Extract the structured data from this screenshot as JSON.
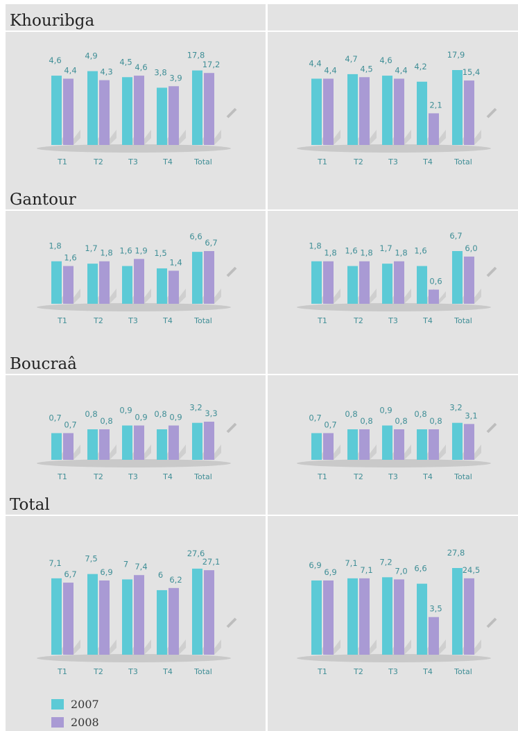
{
  "colors": {
    "s2007": "#5ccad6",
    "s2008": "#a99ad4"
  },
  "sections": [
    {
      "title": "Khouribga"
    },
    {
      "title": "Gantour"
    },
    {
      "title": "Boucraâ"
    },
    {
      "title": "Total"
    }
  ],
  "legend": [
    {
      "label": "2007",
      "color": "#5ccad6"
    },
    {
      "label": "2008",
      "color": "#a99ad4"
    }
  ],
  "chart_data": [
    {
      "type": "bar",
      "section": "Khouribga",
      "column": "left",
      "categories": [
        "T1",
        "T2",
        "T3",
        "T4",
        "Total"
      ],
      "series": [
        {
          "name": "2007",
          "values": [
            4.6,
            4.9,
            4.5,
            3.8,
            17.8
          ]
        },
        {
          "name": "2008",
          "values": [
            4.4,
            4.3,
            4.6,
            3.9,
            17.2
          ]
        }
      ],
      "value_labels": [
        [
          "4,6",
          "4,9",
          "4,5",
          "3,8",
          "17,8"
        ],
        [
          "4,4",
          "4,3",
          "4,6",
          "3,9",
          "17,2"
        ]
      ]
    },
    {
      "type": "bar",
      "section": "Khouribga",
      "column": "right",
      "categories": [
        "T1",
        "T2",
        "T3",
        "T4",
        "Total"
      ],
      "series": [
        {
          "name": "2007",
          "values": [
            4.4,
            4.7,
            4.6,
            4.2,
            17.9
          ]
        },
        {
          "name": "2008",
          "values": [
            4.4,
            4.5,
            4.4,
            2.1,
            15.4
          ]
        }
      ],
      "value_labels": [
        [
          "4,4",
          "4,7",
          "4,6",
          "4,2",
          "17,9"
        ],
        [
          "4,4",
          "4,5",
          "4,4",
          "2,1",
          "15,4"
        ]
      ]
    },
    {
      "type": "bar",
      "section": "Gantour",
      "column": "left",
      "categories": [
        "T1",
        "T2",
        "T3",
        "T4",
        "Total"
      ],
      "series": [
        {
          "name": "2007",
          "values": [
            1.8,
            1.7,
            1.6,
            1.5,
            6.6
          ]
        },
        {
          "name": "2008",
          "values": [
            1.6,
            1.8,
            1.9,
            1.4,
            6.7
          ]
        }
      ],
      "value_labels": [
        [
          "1,8",
          "1,7",
          "1,6",
          "1,5",
          "6,6"
        ],
        [
          "1,6",
          "1,8",
          "1,9",
          "1,4",
          "6,7"
        ]
      ]
    },
    {
      "type": "bar",
      "section": "Gantour",
      "column": "right",
      "categories": [
        "T1",
        "T2",
        "T3",
        "T4",
        "Total"
      ],
      "series": [
        {
          "name": "2007",
          "values": [
            1.8,
            1.6,
            1.7,
            1.6,
            6.7
          ]
        },
        {
          "name": "2008",
          "values": [
            1.8,
            1.8,
            1.8,
            0.6,
            6.0
          ]
        }
      ],
      "value_labels": [
        [
          "1,8",
          "1,6",
          "1,7",
          "1,6",
          "6,7"
        ],
        [
          "1,8",
          "1,8",
          "1,8",
          "0,6",
          "6,0"
        ]
      ]
    },
    {
      "type": "bar",
      "section": "Boucraâ",
      "column": "left",
      "categories": [
        "T1",
        "T2",
        "T3",
        "T4",
        "Total"
      ],
      "series": [
        {
          "name": "2007",
          "values": [
            0.7,
            0.8,
            0.9,
            0.8,
            3.2
          ]
        },
        {
          "name": "2008",
          "values": [
            0.7,
            0.8,
            0.9,
            0.9,
            3.3
          ]
        }
      ],
      "value_labels": [
        [
          "0,7",
          "0,8",
          "0,9",
          "0,8",
          "3,2"
        ],
        [
          "0,7",
          "0,8",
          "0,9",
          "0,9",
          "3,3"
        ]
      ]
    },
    {
      "type": "bar",
      "section": "Boucraâ",
      "column": "right",
      "categories": [
        "T1",
        "T2",
        "T3",
        "T4",
        "Total"
      ],
      "series": [
        {
          "name": "2007",
          "values": [
            0.7,
            0.8,
            0.9,
            0.8,
            3.2
          ]
        },
        {
          "name": "2008",
          "values": [
            0.7,
            0.8,
            0.8,
            0.8,
            3.1
          ]
        }
      ],
      "value_labels": [
        [
          "0,7",
          "0,8",
          "0,9",
          "0,8",
          "3,2"
        ],
        [
          "0,7",
          "0,8",
          "0,8",
          "0,8",
          "3,1"
        ]
      ]
    },
    {
      "type": "bar",
      "section": "Total",
      "column": "left",
      "categories": [
        "T1",
        "T2",
        "T3",
        "T4",
        "Total"
      ],
      "series": [
        {
          "name": "2007",
          "values": [
            7.1,
            7.5,
            7,
            6,
            27.6
          ]
        },
        {
          "name": "2008",
          "values": [
            6.7,
            6.9,
            7.4,
            6.2,
            27.1
          ]
        }
      ],
      "value_labels": [
        [
          "7,1",
          "7,5",
          "7",
          "6",
          "27,6"
        ],
        [
          "6,7",
          "6,9",
          "7,4",
          "6,2",
          "27,1"
        ]
      ]
    },
    {
      "type": "bar",
      "section": "Total",
      "column": "right",
      "categories": [
        "T1",
        "T2",
        "T3",
        "T4",
        "Total"
      ],
      "series": [
        {
          "name": "2007",
          "values": [
            6.9,
            7.1,
            7.2,
            6.6,
            27.8
          ]
        },
        {
          "name": "2008",
          "values": [
            6.9,
            7.1,
            7.0,
            3.5,
            24.5
          ]
        }
      ],
      "value_labels": [
        [
          "6,9",
          "7,1",
          "7,2",
          "6,6",
          "27,8"
        ],
        [
          "6,9",
          "7,1",
          "7,0",
          "3,5",
          "24,5"
        ]
      ]
    }
  ]
}
